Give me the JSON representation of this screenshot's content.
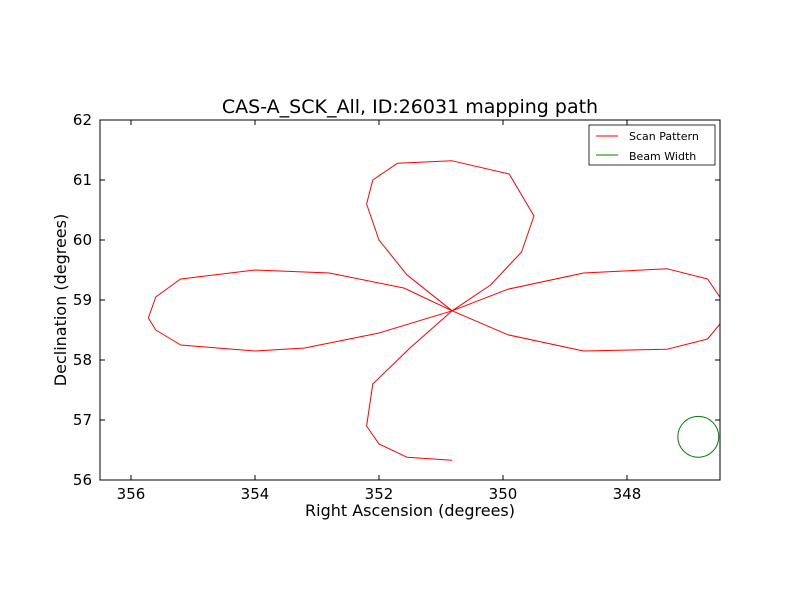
{
  "chart_data": {
    "type": "line",
    "title": "CAS-A_SCK_All, ID:26031 mapping path",
    "xlabel": "Right Ascension (degrees)",
    "ylabel": "Declination (degrees)",
    "xlim": [
      356.5,
      346.5
    ],
    "ylim": [
      56,
      62
    ],
    "x_ticks": [
      356,
      354,
      352,
      350,
      348
    ],
    "y_ticks": [
      56,
      57,
      58,
      59,
      60,
      61,
      62
    ],
    "grid": false,
    "legend_position": "top-right",
    "series": [
      {
        "name": "Scan Pattern",
        "color": "#ff0000",
        "x": [
          350.82,
          352.0,
          353.2,
          354.0,
          355.2,
          355.6,
          355.72,
          355.6,
          355.2,
          354.0,
          352.8,
          351.6,
          350.82,
          349.92,
          348.7,
          347.35,
          346.7,
          346.47,
          346.5,
          346.7,
          347.35,
          348.7,
          349.92,
          350.82,
          351.55,
          352.0,
          352.2,
          352.1,
          351.7,
          350.82,
          349.9,
          349.5,
          349.7,
          350.2,
          350.82,
          351.5,
          352.1,
          352.2,
          352.0,
          351.55,
          350.82
        ],
        "y": [
          58.82,
          58.45,
          58.2,
          58.15,
          58.25,
          58.5,
          58.7,
          59.05,
          59.35,
          59.5,
          59.45,
          59.2,
          58.82,
          59.18,
          59.45,
          59.52,
          59.35,
          59.0,
          58.6,
          58.35,
          58.18,
          58.15,
          58.42,
          58.82,
          59.42,
          60.0,
          60.6,
          61.0,
          61.28,
          61.32,
          61.1,
          60.4,
          59.8,
          59.25,
          58.82,
          58.2,
          57.6,
          56.9,
          56.6,
          56.38,
          56.33
        ]
      },
      {
        "name": "Beam Width",
        "color": "#008000",
        "shape": "circle",
        "x": [
          346.85
        ],
        "y": [
          56.72
        ],
        "radius_deg": 0.33
      }
    ]
  }
}
